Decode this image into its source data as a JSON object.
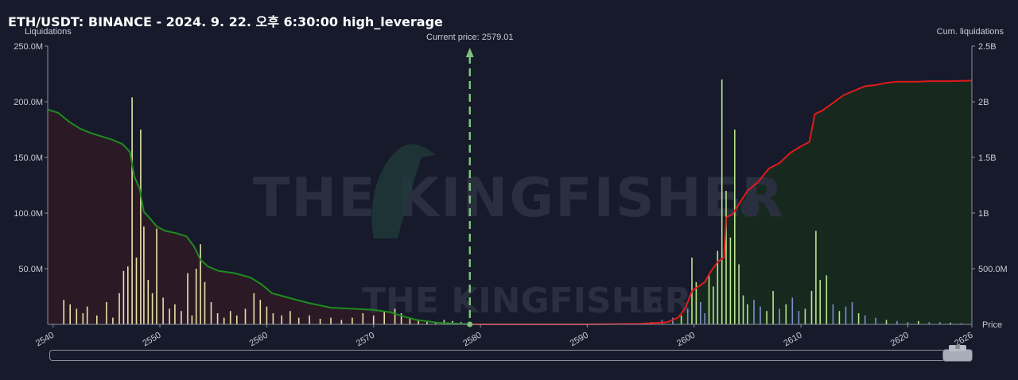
{
  "title": "ETH/USDT: BINANCE - 2024. 9. 22. 오후 6:30:00 high_leverage",
  "watermark": {
    "big": "THE KINGFISHER",
    "suffix": ".IO"
  },
  "colors": {
    "background": "#161a2b",
    "short_side_fill": "#2b1a26",
    "long_side_fill": "#17291f",
    "cum_short_line": "#1e8c1e",
    "cum_long_line": "#e01a1a",
    "bar_short": "#e7e3a6",
    "bar_long_green": "#b9e58e",
    "bar_long_blue": "#7a90d0",
    "current_price_line": "#7fbf7f"
  },
  "chart_data": {
    "type": "bar",
    "title": "ETH/USDT: BINANCE - 2024. 9. 22. 오후 6:30:00 high_leverage",
    "ylabel": "Liquidations",
    "y2label": "Cum. liquidations",
    "xlabel": "Price",
    "xlim": [
      2539.5,
      2626
    ],
    "ylim": [
      0,
      250000000
    ],
    "y2lim": [
      0,
      2500000000
    ],
    "x_ticks": [
      "2540",
      "2550",
      "2560",
      "2570",
      "2580",
      "2590",
      "2600",
      "2610",
      "2620",
      "2626"
    ],
    "y_ticks": [
      "250.0M",
      "200.0M",
      "150.0M",
      "100.0M",
      "50.0M"
    ],
    "y2_ticks": [
      "2.5B",
      "2B",
      "1.5B",
      "1B",
      "500.0M"
    ],
    "current_price": {
      "label": "Current price: 2579.01",
      "value": 2579.01
    },
    "series": [
      {
        "kind": "bars",
        "side": "short",
        "points": [
          [
            2541.0,
            22000000
          ],
          [
            2541.6,
            18000000
          ],
          [
            2542.2,
            14000000
          ],
          [
            2542.8,
            10000000
          ],
          [
            2543.2,
            16000000
          ],
          [
            2544.1,
            8000000
          ],
          [
            2545.0,
            20000000
          ],
          [
            2545.6,
            6000000
          ],
          [
            2546.2,
            28000000
          ],
          [
            2546.6,
            48000000
          ],
          [
            2547.0,
            52000000
          ],
          [
            2547.4,
            204000000
          ],
          [
            2547.8,
            60000000
          ],
          [
            2548.2,
            175000000
          ],
          [
            2548.5,
            88000000
          ],
          [
            2548.9,
            40000000
          ],
          [
            2549.3,
            28000000
          ],
          [
            2549.7,
            86000000
          ],
          [
            2550.3,
            24000000
          ],
          [
            2550.9,
            14000000
          ],
          [
            2551.4,
            18000000
          ],
          [
            2552.0,
            12000000
          ],
          [
            2552.6,
            46000000
          ],
          [
            2553.0,
            8000000
          ],
          [
            2553.4,
            50000000
          ],
          [
            2553.8,
            72000000
          ],
          [
            2554.2,
            38000000
          ],
          [
            2554.8,
            20000000
          ],
          [
            2555.4,
            10000000
          ],
          [
            2556.0,
            6000000
          ],
          [
            2556.6,
            12000000
          ],
          [
            2557.2,
            8000000
          ],
          [
            2558.0,
            14000000
          ],
          [
            2558.8,
            28000000
          ],
          [
            2559.4,
            22000000
          ],
          [
            2560.0,
            16000000
          ],
          [
            2560.6,
            10000000
          ],
          [
            2561.4,
            8000000
          ],
          [
            2562.2,
            12000000
          ],
          [
            2563.0,
            6000000
          ],
          [
            2564.0,
            8000000
          ],
          [
            2565.0,
            5000000
          ],
          [
            2566.0,
            6000000
          ],
          [
            2567.0,
            4000000
          ],
          [
            2568.0,
            6000000
          ],
          [
            2569.0,
            10000000
          ],
          [
            2570.0,
            8000000
          ],
          [
            2571.0,
            12000000
          ],
          [
            2572.0,
            14000000
          ],
          [
            2572.6,
            10000000
          ],
          [
            2573.4,
            6000000
          ],
          [
            2574.2,
            4000000
          ],
          [
            2575.0,
            3000000
          ],
          [
            2575.8,
            2000000
          ],
          [
            2576.6,
            4000000
          ],
          [
            2577.4,
            3000000
          ],
          [
            2578.2,
            2000000
          ]
        ]
      },
      {
        "kind": "bars",
        "side": "long",
        "points": [
          [
            2596.0,
            2000000
          ],
          [
            2597.0,
            4000000
          ],
          [
            2598.0,
            6000000
          ],
          [
            2598.8,
            8000000
          ],
          [
            2599.4,
            14000000
          ],
          [
            2599.8,
            60000000
          ],
          [
            2600.2,
            38000000
          ],
          [
            2600.6,
            20000000
          ],
          [
            2601.0,
            10000000
          ],
          [
            2601.4,
            44000000
          ],
          [
            2601.8,
            34000000
          ],
          [
            2602.2,
            66000000
          ],
          [
            2602.6,
            220000000
          ],
          [
            2603.0,
            120000000
          ],
          [
            2603.4,
            78000000
          ],
          [
            2603.8,
            175000000
          ],
          [
            2604.2,
            54000000
          ],
          [
            2604.6,
            26000000
          ],
          [
            2605.0,
            18000000
          ],
          [
            2605.6,
            22000000
          ],
          [
            2606.2,
            16000000
          ],
          [
            2606.8,
            12000000
          ],
          [
            2607.4,
            30000000
          ],
          [
            2608.0,
            14000000
          ],
          [
            2608.6,
            18000000
          ],
          [
            2609.2,
            24000000
          ],
          [
            2609.8,
            12000000
          ],
          [
            2610.4,
            14000000
          ],
          [
            2611.0,
            30000000
          ],
          [
            2611.4,
            84000000
          ],
          [
            2611.8,
            40000000
          ],
          [
            2612.4,
            44000000
          ],
          [
            2613.0,
            18000000
          ],
          [
            2613.6,
            12000000
          ],
          [
            2614.2,
            16000000
          ],
          [
            2614.8,
            20000000
          ],
          [
            2615.4,
            10000000
          ],
          [
            2616.0,
            8000000
          ],
          [
            2617.0,
            6000000
          ],
          [
            2618.0,
            4000000
          ],
          [
            2619.0,
            3000000
          ],
          [
            2620.0,
            2000000
          ],
          [
            2621.0,
            3000000
          ],
          [
            2622.0,
            2000000
          ],
          [
            2623.0,
            2000000
          ],
          [
            2624.0,
            1500000
          ],
          [
            2625.0,
            1000000
          ]
        ]
      },
      {
        "kind": "line",
        "name": "cumulative short",
        "points": [
          [
            2539.5,
            1930000000
          ],
          [
            2540.5,
            1900000000
          ],
          [
            2541.5,
            1820000000
          ],
          [
            2542.5,
            1760000000
          ],
          [
            2543.5,
            1720000000
          ],
          [
            2544.5,
            1690000000
          ],
          [
            2545.5,
            1660000000
          ],
          [
            2546.5,
            1620000000
          ],
          [
            2547.2,
            1550000000
          ],
          [
            2547.6,
            1330000000
          ],
          [
            2548.1,
            1220000000
          ],
          [
            2548.5,
            1010000000
          ],
          [
            2549.0,
            960000000
          ],
          [
            2549.7,
            880000000
          ],
          [
            2550.5,
            840000000
          ],
          [
            2551.5,
            820000000
          ],
          [
            2552.5,
            790000000
          ],
          [
            2553.2,
            700000000
          ],
          [
            2553.8,
            580000000
          ],
          [
            2554.5,
            520000000
          ],
          [
            2555.5,
            480000000
          ],
          [
            2557.0,
            460000000
          ],
          [
            2558.5,
            420000000
          ],
          [
            2559.5,
            360000000
          ],
          [
            2560.5,
            280000000
          ],
          [
            2562.0,
            240000000
          ],
          [
            2564.0,
            190000000
          ],
          [
            2566.0,
            150000000
          ],
          [
            2568.0,
            140000000
          ],
          [
            2570.0,
            130000000
          ],
          [
            2571.5,
            110000000
          ],
          [
            2572.5,
            80000000
          ],
          [
            2574.0,
            40000000
          ],
          [
            2576.0,
            15000000
          ],
          [
            2578.0,
            5000000
          ],
          [
            2579.01,
            0
          ]
        ]
      },
      {
        "kind": "line",
        "name": "cumulative long",
        "points": [
          [
            2579.01,
            0
          ],
          [
            2590.0,
            0
          ],
          [
            2595.0,
            5000000
          ],
          [
            2597.5,
            20000000
          ],
          [
            2598.5,
            60000000
          ],
          [
            2599.2,
            150000000
          ],
          [
            2599.8,
            300000000
          ],
          [
            2600.4,
            340000000
          ],
          [
            2601.0,
            380000000
          ],
          [
            2601.6,
            480000000
          ],
          [
            2602.2,
            560000000
          ],
          [
            2602.8,
            600000000
          ],
          [
            2603.0,
            960000000
          ],
          [
            2603.6,
            990000000
          ],
          [
            2604.2,
            1080000000
          ],
          [
            2605.0,
            1200000000
          ],
          [
            2606.0,
            1280000000
          ],
          [
            2607.0,
            1400000000
          ],
          [
            2608.0,
            1450000000
          ],
          [
            2609.0,
            1540000000
          ],
          [
            2610.0,
            1600000000
          ],
          [
            2610.8,
            1640000000
          ],
          [
            2611.3,
            1890000000
          ],
          [
            2612.0,
            1920000000
          ],
          [
            2613.0,
            1990000000
          ],
          [
            2614.0,
            2060000000
          ],
          [
            2615.0,
            2100000000
          ],
          [
            2616.0,
            2140000000
          ],
          [
            2617.0,
            2150000000
          ],
          [
            2618.0,
            2170000000
          ],
          [
            2619.0,
            2180000000
          ],
          [
            2620.0,
            2180000000
          ],
          [
            2621.0,
            2180000000
          ],
          [
            2622.0,
            2185000000
          ],
          [
            2624.0,
            2185000000
          ],
          [
            2626.0,
            2190000000
          ]
        ]
      }
    ]
  }
}
